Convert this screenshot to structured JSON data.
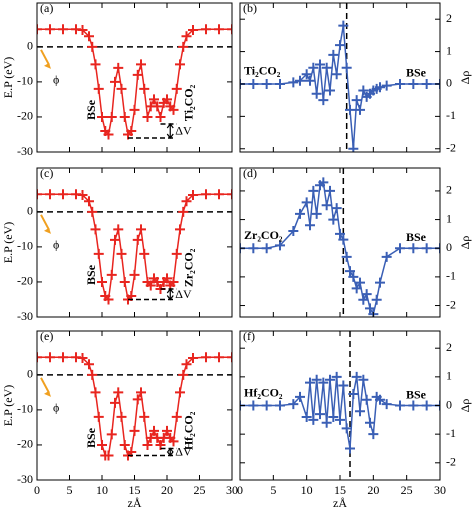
{
  "chart_data": [
    {
      "type": "scatter",
      "panel_label": "(a)",
      "ylabel": "E.P (eV)",
      "color": "#e8251f",
      "marker": "+",
      "x": [
        0,
        2,
        4,
        6,
        7,
        8,
        8.5,
        9,
        9.5,
        10,
        10.5,
        11,
        11.5,
        12,
        12.5,
        13,
        13.5,
        14,
        14.5,
        15,
        15.5,
        16,
        16.5,
        17,
        17.5,
        18,
        18.5,
        19,
        19.5,
        20,
        20.5,
        21,
        21.5,
        22,
        22.5,
        23,
        24,
        26,
        28,
        30
      ],
      "values": [
        5,
        5,
        5,
        5,
        4.8,
        3,
        0,
        -5,
        -12,
        -20,
        -24,
        -25,
        -20,
        -10,
        -6,
        -12,
        -20,
        -25,
        -24,
        -18,
        -8,
        -5,
        -12,
        -20,
        -17,
        -15,
        -17,
        -20,
        -16,
        -15,
        -17,
        -18,
        -12,
        -5,
        0,
        3,
        4.8,
        5,
        5,
        5
      ],
      "xlim": [
        0,
        30
      ],
      "xticks": [
        0,
        5,
        10,
        15,
        20,
        25,
        30
      ],
      "ylim": [
        -30,
        12.5
      ],
      "yticks": [
        -30,
        -20,
        -10,
        0
      ],
      "hline": 0,
      "phi": "ϕ",
      "left_label": "BSe",
      "right_label": "Ti₂CO₂",
      "delta_v": {
        "levels": [
          -26,
          -22
        ],
        "label": "ΔV"
      }
    },
    {
      "type": "scatter",
      "panel_label": "(b)",
      "ylabel": "Δρ",
      "color": "#3a5fb5",
      "marker": "+",
      "x": [
        0,
        2,
        4,
        6,
        8,
        9,
        10,
        10.5,
        11,
        11.5,
        12,
        12.5,
        13,
        13.5,
        14,
        14.5,
        15,
        15.5,
        16,
        16.5,
        17,
        17.5,
        18,
        18.5,
        19,
        19.5,
        20,
        20.5,
        21,
        22,
        24,
        26,
        28,
        30
      ],
      "values": [
        0,
        0,
        0,
        0,
        0.05,
        0.1,
        0.3,
        0.1,
        0.5,
        -0.3,
        0.6,
        -0.5,
        0.5,
        -0.2,
        0.9,
        0.3,
        1.2,
        1.8,
        0.5,
        -0.8,
        -2.0,
        -0.5,
        -0.8,
        -0.2,
        -0.4,
        -0.3,
        -0.2,
        -0.15,
        -0.1,
        -0.05,
        0,
        0,
        0,
        0
      ],
      "xlim": [
        0,
        30
      ],
      "xticks": [
        0,
        5,
        10,
        15,
        20,
        25,
        30
      ],
      "ylim": [
        -2.1,
        2.5
      ],
      "yticks": [
        -2,
        -1,
        0,
        1,
        2
      ],
      "vline": 16,
      "left_label": "Ti₂CO₂",
      "right_label": "BSe"
    },
    {
      "type": "scatter",
      "panel_label": "(c)",
      "ylabel": "E.P (eV)",
      "color": "#e8251f",
      "marker": "+",
      "x": [
        0,
        2,
        4,
        6,
        7,
        8,
        8.5,
        9,
        9.5,
        10,
        10.5,
        11,
        11.5,
        12,
        12.5,
        13,
        13.5,
        14,
        14.5,
        15,
        15.5,
        16,
        16.5,
        17,
        17.5,
        18,
        18.5,
        19,
        19.5,
        20,
        20.5,
        21,
        21.5,
        22,
        22.5,
        23,
        24,
        26,
        28,
        30
      ],
      "values": [
        5,
        5,
        5,
        5,
        4.8,
        3,
        0,
        -5,
        -12,
        -20,
        -24,
        -25,
        -18,
        -8,
        -5,
        -12,
        -20,
        -25,
        -24,
        -18,
        -8,
        -5,
        -12,
        -20,
        -21,
        -19,
        -20,
        -22,
        -20,
        -19,
        -21,
        -20,
        -12,
        -5,
        0,
        3,
        4.8,
        5,
        5,
        5
      ],
      "xlim": [
        0,
        30
      ],
      "xticks": [
        0,
        5,
        10,
        15,
        20,
        25,
        30
      ],
      "ylim": [
        -30,
        12.5
      ],
      "yticks": [
        -30,
        -20,
        -10,
        0
      ],
      "hline": 0,
      "phi": "ϕ",
      "left_label": "BSe",
      "right_label": "Zr₂CO₂",
      "delta_v": {
        "levels": [
          -25,
          -22
        ],
        "label": "ΔV"
      }
    },
    {
      "type": "scatter",
      "panel_label": "(d)",
      "ylabel": "Δρ",
      "color": "#3a5fb5",
      "marker": "+",
      "x": [
        0,
        2,
        4,
        6,
        8,
        9,
        10,
        10.5,
        11,
        11.5,
        12,
        12.5,
        13,
        13.5,
        14,
        14.5,
        15,
        15.5,
        16,
        16.5,
        17,
        17.5,
        18,
        18.5,
        19,
        19.5,
        20,
        20.5,
        21,
        22,
        24,
        26,
        28,
        30
      ],
      "values": [
        0,
        0,
        0,
        0.1,
        0.6,
        1.2,
        1.6,
        0.8,
        2.0,
        1.2,
        2.2,
        2.3,
        1.5,
        2.0,
        1.0,
        1.4,
        0.5,
        0.3,
        -0.3,
        -0.8,
        -1.0,
        -1.4,
        -1.2,
        -1.8,
        -1.6,
        -2.1,
        -2.3,
        -1.8,
        -1.2,
        -0.3,
        0,
        0,
        0,
        0
      ],
      "xlim": [
        0,
        30
      ],
      "xticks": [
        0,
        5,
        10,
        15,
        20,
        25,
        30
      ],
      "ylim": [
        -2.4,
        2.8
      ],
      "yticks": [
        -2,
        -1,
        0,
        1,
        2
      ],
      "vline": 15.5,
      "left_label": "Zr₂CO₂",
      "right_label": "BSe"
    },
    {
      "type": "scatter",
      "panel_label": "(e)",
      "ylabel": "E.P (eV)",
      "xlabel": "zÅ",
      "color": "#e8251f",
      "marker": "+",
      "x": [
        0,
        2,
        4,
        6,
        7,
        8,
        8.5,
        9,
        9.5,
        10,
        10.5,
        11,
        11.5,
        12,
        12.5,
        13,
        13.5,
        14,
        14.5,
        15,
        15.5,
        16,
        16.5,
        17,
        17.5,
        18,
        18.5,
        19,
        19.5,
        20,
        20.5,
        21,
        21.5,
        22,
        22.5,
        23,
        24,
        26,
        28,
        30
      ],
      "values": [
        5,
        5,
        5,
        5,
        4.8,
        3,
        0,
        -5,
        -12,
        -20,
        -23,
        -23,
        -17,
        -8,
        -5,
        -12,
        -20,
        -23,
        -22,
        -16,
        -7,
        -5,
        -12,
        -20,
        -18,
        -16,
        -18,
        -20,
        -18,
        -16,
        -18,
        -19,
        -12,
        -5,
        0,
        3,
        4.8,
        5,
        5,
        5
      ],
      "xlim": [
        0,
        30
      ],
      "xticks": [
        0,
        5,
        10,
        15,
        20,
        25,
        30
      ],
      "ylim": [
        -30,
        12.5
      ],
      "yticks": [
        -30,
        -20,
        -10,
        0
      ],
      "hline": 0,
      "phi": "ϕ",
      "left_label": "BSe",
      "right_label": "Hf₂CO₂",
      "delta_v": {
        "levels": [
          -23,
          -21
        ],
        "label": "ΔV"
      }
    },
    {
      "type": "scatter",
      "panel_label": "(f)",
      "ylabel": "Δρ",
      "xlabel": "zÅ",
      "color": "#3a5fb5",
      "marker": "+",
      "x": [
        0,
        2,
        4,
        6,
        8,
        9,
        10,
        10.5,
        11,
        11.5,
        12,
        12.5,
        13,
        13.5,
        14,
        14.5,
        15,
        15.5,
        16,
        16.5,
        17,
        17.5,
        18,
        18.5,
        19,
        19.5,
        20,
        20.5,
        21,
        22,
        24,
        26,
        28,
        30
      ],
      "values": [
        0,
        0,
        0,
        0,
        0.05,
        0.3,
        -0.4,
        0.8,
        -0.5,
        0.9,
        -0.3,
        0.8,
        -0.6,
        0.9,
        -0.4,
        1.0,
        -0.5,
        0.7,
        -0.8,
        -1.5,
        0.4,
        1.0,
        -0.2,
        0.9,
        0.2,
        -0.6,
        -1.0,
        0.3,
        0.2,
        0.05,
        0,
        0,
        0,
        0
      ],
      "xlim": [
        0,
        30
      ],
      "xticks": [
        0,
        5,
        10,
        15,
        20,
        25,
        30
      ],
      "ylim": [
        -2.6,
        2.6
      ],
      "yticks": [
        -2,
        -1,
        0,
        1,
        2
      ],
      "vline": 16.5,
      "left_label": "Hf₂CO₂",
      "right_label": "BSe"
    }
  ]
}
